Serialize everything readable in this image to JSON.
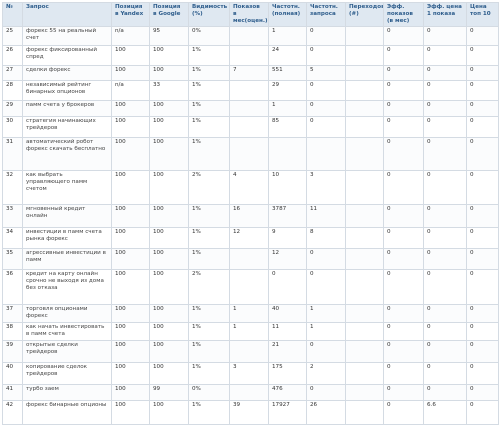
{
  "table": {
    "columns": [
      "№",
      "Запрос",
      "Позиция в Yandex",
      "Позиция в Google",
      "Видимость (%)",
      "Показов в мес(оцен.)",
      "Частотн. (полная)",
      "Частотн. запроса",
      "Переходов (#)",
      "Эфф. показов (в мес)",
      "Эфф. цена 1 показа",
      "Цена топ 10"
    ],
    "rows": [
      [
        "25",
        "форекс 55 на реальный счет",
        "n/a",
        "95",
        "0%",
        null,
        "1",
        "0",
        null,
        "0",
        "0",
        "0"
      ],
      [
        "26",
        "форекс фиксированный спред",
        "100",
        "100",
        "1%",
        null,
        "24",
        "0",
        null,
        "0",
        "0",
        "0"
      ],
      [
        "27",
        "сделки форекс",
        "100",
        "100",
        "1%",
        "7",
        "551",
        "5",
        null,
        "0",
        "0",
        "0"
      ],
      [
        "28",
        "независимый рейтинг бинарных опционов",
        "n/a",
        "33",
        "1%",
        null,
        "29",
        "0",
        null,
        "0",
        "0",
        "0"
      ],
      [
        "29",
        "памм счета у брокеров",
        "100",
        "100",
        "1%",
        null,
        "1",
        "0",
        null,
        "0",
        "0",
        "0"
      ],
      [
        "30",
        "стратегия начинающих трейдеров",
        "100",
        "100",
        "1%",
        null,
        "85",
        "0",
        null,
        "0",
        "0",
        "0"
      ],
      [
        "31",
        "автоматический робот форекс скачать бесплатно",
        "100",
        "100",
        "1%",
        null,
        null,
        null,
        null,
        "0",
        "0",
        "0"
      ],
      [
        "32",
        "как выбрать управляющего памм счетом",
        "100",
        "100",
        "2%",
        "4",
        "10",
        "3",
        null,
        "0",
        "0",
        "0"
      ],
      [
        "33",
        "мгновенный кредит онлайн",
        "100",
        "100",
        "1%",
        "16",
        "3787",
        "11",
        null,
        "0",
        "0",
        "0"
      ],
      [
        "34",
        "инвестиции в памм счета рынка форекс",
        "100",
        "100",
        "1%",
        "12",
        "9",
        "8",
        null,
        "0",
        "0",
        "0"
      ],
      [
        "35",
        "агрессивные инвестиции в памм",
        "100",
        "100",
        "1%",
        null,
        "12",
        "0",
        null,
        "0",
        "0",
        "0"
      ],
      [
        "36",
        "кредит на карту онлайн срочно не выходя из дома без отказа",
        "100",
        "100",
        "2%",
        null,
        "0",
        "0",
        null,
        "0",
        "0",
        "0"
      ],
      [
        "37",
        "торговля опционами форекс",
        "100",
        "100",
        "1%",
        "1",
        "40",
        "1",
        null,
        "0",
        "0",
        "0"
      ],
      [
        "38",
        "как начать инвестировать в памм счета",
        "100",
        "100",
        "1%",
        "1",
        "11",
        "1",
        null,
        "0",
        "0",
        "0"
      ],
      [
        "39",
        "открытые сделки трейдеров",
        "100",
        "100",
        "1%",
        null,
        "21",
        "0",
        null,
        "0",
        "0",
        "0"
      ],
      [
        "40",
        "копирование сделок трейдеров",
        "100",
        "100",
        "1%",
        "3",
        "175",
        "2",
        null,
        "0",
        "0",
        "0"
      ],
      [
        "41",
        "турбо заем",
        "100",
        "99",
        "0%",
        null,
        "476",
        "0",
        null,
        "0",
        "0",
        "0"
      ],
      [
        "42",
        "форекс бинарные опционы",
        "100",
        "100",
        "1%",
        "39",
        "17927",
        "26",
        null,
        "0",
        "6.6",
        "0"
      ]
    ]
  }
}
